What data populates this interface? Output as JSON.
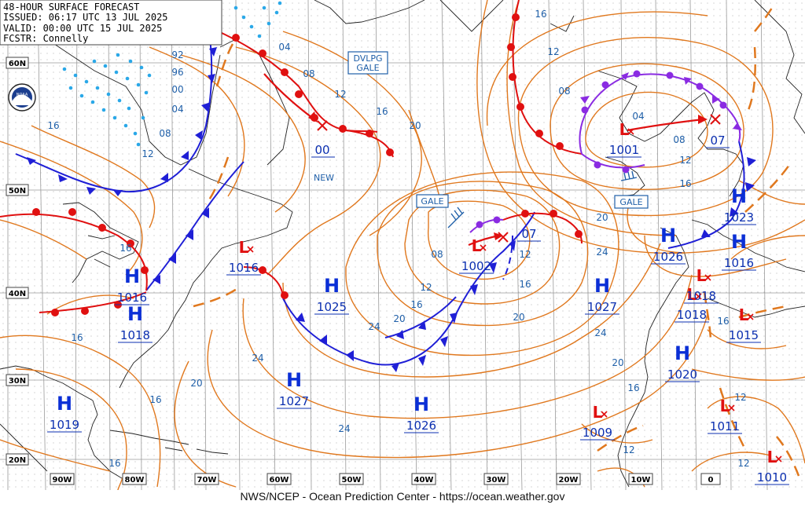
{
  "header": {
    "line1": "48-HOUR SURFACE FORECAST",
    "line2": "ISSUED: 06:17 UTC 13 JUL 2025",
    "line3": "VALID:  00:00 UTC 15 JUL 2025",
    "line4": "FCSTR:  Connelly"
  },
  "logo": "NOAA",
  "footer": "NWS/NCEP - Ocean Prediction Center - https://ocean.weather.gov",
  "warnings": {
    "dvlpg_gale_1": "DVLPG",
    "dvlpg_gale_2": "GALE",
    "gale_west": "GALE",
    "gale_east": "GALE",
    "new_label": "NEW"
  },
  "lat_labels": [
    "60N",
    "50N",
    "40N",
    "30N",
    "20N"
  ],
  "lon_labels": [
    "90W",
    "80W",
    "70W",
    "60W",
    "50W",
    "40W",
    "30W",
    "20W",
    "10W",
    "0"
  ],
  "pressure_centers": [
    {
      "type": "H",
      "value": "1016"
    },
    {
      "type": "H",
      "value": "1018"
    },
    {
      "type": "H",
      "value": "1025"
    },
    {
      "type": "H",
      "value": "1027"
    },
    {
      "type": "H",
      "value": "1019"
    },
    {
      "type": "H",
      "value": "1026"
    },
    {
      "type": "H",
      "value": "1027"
    },
    {
      "type": "H",
      "value": "1026"
    },
    {
      "type": "H",
      "value": "1023"
    },
    {
      "type": "H",
      "value": "1016"
    },
    {
      "type": "H",
      "value": "1020"
    },
    {
      "type": "L",
      "value": "1016"
    },
    {
      "type": "L",
      "value": "1002"
    },
    {
      "type": "L",
      "value": "1001"
    },
    {
      "type": "L",
      "value": "1018"
    },
    {
      "type": "L",
      "value": "1018"
    },
    {
      "type": "L",
      "value": "1015"
    },
    {
      "type": "L",
      "value": "1011"
    },
    {
      "type": "L",
      "value": "1009"
    },
    {
      "type": "L",
      "value": "1010"
    }
  ],
  "forecast_positions": [
    "00",
    "07",
    "07"
  ],
  "isobar_labels": [
    "92",
    "96",
    "00",
    "04",
    "08",
    "12",
    "16",
    "04",
    "08",
    "12",
    "16",
    "20",
    "16",
    "12",
    "08",
    "04",
    "08",
    "12",
    "16",
    "08",
    "12",
    "16",
    "20",
    "24",
    "20",
    "24",
    "16",
    "20",
    "24",
    "16",
    "20",
    "16",
    "12",
    "12",
    "16",
    "16"
  ],
  "colors": {
    "isobar": "#e0781e",
    "cold_front": "#1f1fd6",
    "warm_front": "#e01010",
    "occluded_front": "#8a2be2",
    "ice": "#2aa8e8",
    "grid": "#9a9a9a",
    "coast": "#222222"
  }
}
